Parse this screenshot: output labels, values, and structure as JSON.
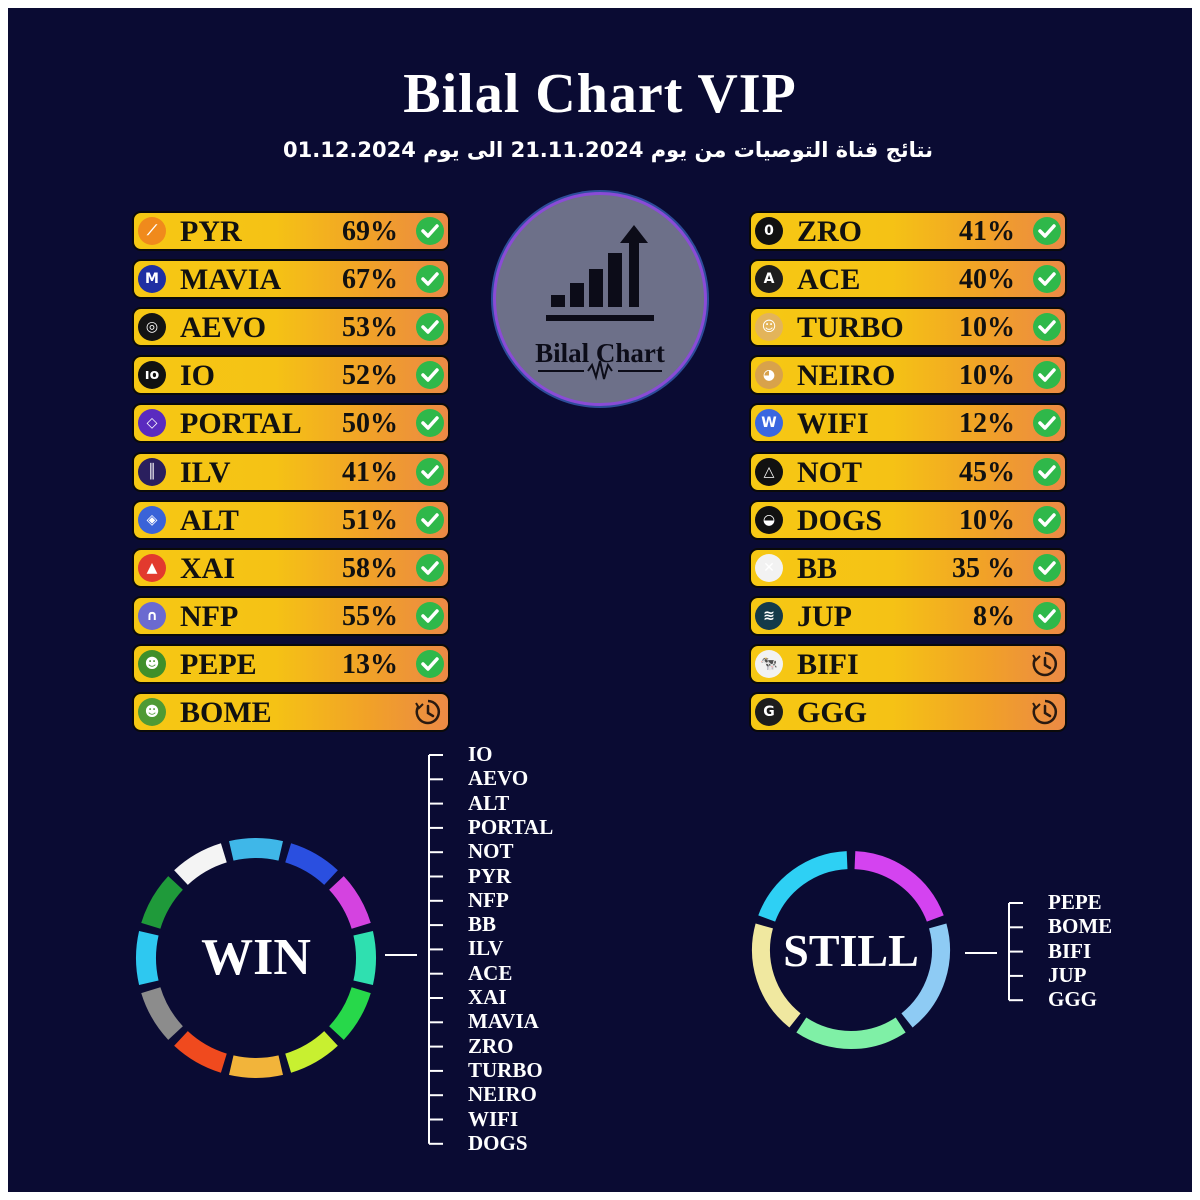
{
  "title": "Bilal Chart VIP",
  "subtitle": "نتائج قناة التوصيات من يوم 21.11.2024 الى يوم 01.12.2024",
  "center_logo": {
    "brand": "Bilal Chart",
    "icon": "bar-chart-arrow-icon"
  },
  "left_list": [
    {
      "name": "PYR",
      "pct": "69%",
      "status": "win",
      "logo_char": "⟋",
      "logo_bg": "#f08a1c"
    },
    {
      "name": "MAVIA",
      "pct": "67%",
      "status": "win",
      "logo_char": "M",
      "logo_bg": "#1f2fa3"
    },
    {
      "name": "AEVO",
      "pct": "53%",
      "status": "win",
      "logo_char": "◎",
      "logo_bg": "#141414"
    },
    {
      "name": "IO",
      "pct": "52%",
      "status": "win",
      "logo_char": "ıo",
      "logo_bg": "#111111"
    },
    {
      "name": "PORTAL",
      "pct": "50%",
      "status": "win",
      "logo_char": "◇",
      "logo_bg": "#5a2bbf"
    },
    {
      "name": "ILV",
      "pct": "41%",
      "status": "win",
      "logo_char": "║",
      "logo_bg": "#2a1f5e"
    },
    {
      "name": "ALT",
      "pct": "51%",
      "status": "win",
      "logo_char": "◈",
      "logo_bg": "#3a63d8"
    },
    {
      "name": "XAI",
      "pct": "58%",
      "status": "win",
      "logo_char": "▲",
      "logo_bg": "#e23a2e"
    },
    {
      "name": "NFP",
      "pct": "55%",
      "status": "win",
      "logo_char": "∩",
      "logo_bg": "#6b6ad0"
    },
    {
      "name": "PEPE",
      "pct": "13%",
      "status": "win",
      "logo_char": "☻",
      "logo_bg": "#3f8f2a"
    },
    {
      "name": "BOME",
      "pct": "",
      "status": "pending",
      "logo_char": "☻",
      "logo_bg": "#4f9a34"
    }
  ],
  "right_list": [
    {
      "name": "ZRO",
      "pct": "41%",
      "status": "win",
      "logo_char": "0",
      "logo_bg": "#111111"
    },
    {
      "name": "ACE",
      "pct": "40%",
      "status": "win",
      "logo_char": "A",
      "logo_bg": "#1d1d1d"
    },
    {
      "name": "TURBO",
      "pct": "10%",
      "status": "win",
      "logo_char": "☺",
      "logo_bg": "#e3b45a"
    },
    {
      "name": "NEIRO",
      "pct": "10%",
      "status": "win",
      "logo_char": "◕",
      "logo_bg": "#d8a24b"
    },
    {
      "name": "WIFI",
      "pct": "12%",
      "status": "win",
      "logo_char": "W",
      "logo_bg": "#3a67e0"
    },
    {
      "name": "NOT",
      "pct": "45%",
      "status": "win",
      "logo_char": "△",
      "logo_bg": "#111111"
    },
    {
      "name": "DOGS",
      "pct": "10%",
      "status": "win",
      "logo_char": "◒",
      "logo_bg": "#111111"
    },
    {
      "name": "BB",
      "pct": "35 %",
      "status": "win",
      "logo_char": "✕",
      "logo_bg": "#f2f2f2"
    },
    {
      "name": "JUP",
      "pct": "8%",
      "status": "win",
      "logo_char": "≋",
      "logo_bg": "#143a4a"
    },
    {
      "name": "BIFI",
      "pct": "",
      "status": "pending",
      "logo_char": "🐄",
      "logo_bg": "#f2f2f2"
    },
    {
      "name": "GGG",
      "pct": "",
      "status": "pending",
      "logo_char": "G",
      "logo_bg": "#1d1d1d"
    }
  ],
  "win": {
    "label": "WIN",
    "items": [
      "IO",
      "AEVO",
      "ALT",
      "PORTAL",
      "NOT",
      "PYR",
      "NFP",
      "BB",
      "ILV",
      "ACE",
      "XAI",
      "MAVIA",
      "ZRO",
      "TURBO",
      "NEIRO",
      "WIFI",
      "DOGS"
    ],
    "ring_colors": [
      "#3fb7e8",
      "#2a4fe0",
      "#d443e0",
      "#2fe0b0",
      "#27d84a",
      "#c8f030",
      "#f2b43a",
      "#f04a1e",
      "#8c8c8c",
      "#2ec8f0",
      "#1f9a3a",
      "#f4f4f4"
    ]
  },
  "still": {
    "label": "STILL",
    "items": [
      "PEPE",
      "BOME",
      "BIFI",
      "JUP",
      "GGG"
    ],
    "ring_colors": [
      "#d443f0",
      "#8ecbf4",
      "#7ff0a6",
      "#f0e8a0",
      "#2ed0f4"
    ]
  },
  "colors": {
    "background": "#0a0b33",
    "pill_start": "#f6c814",
    "pill_end": "#eb8a45",
    "check": "#2fb84a"
  }
}
